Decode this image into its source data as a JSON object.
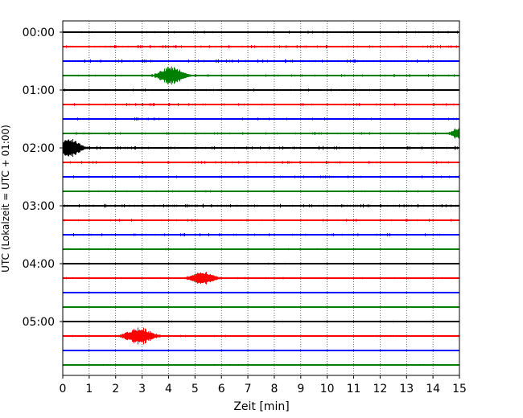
{
  "chart_data": {
    "type": "line",
    "title": "",
    "xlabel": "Zeit  [min]",
    "ylabel": "UTC (Lokalzeit = UTC + 01:00)",
    "xlim": [
      0,
      15
    ],
    "x_ticks": [
      "0",
      "1",
      "2",
      "3",
      "4",
      "5",
      "6",
      "7",
      "8",
      "9",
      "10",
      "11",
      "12",
      "13",
      "14",
      "15"
    ],
    "y_ticks": [
      "00:00",
      "01:00",
      "02:00",
      "03:00",
      "04:00",
      "05:00"
    ],
    "grid": "vertical dotted lines at every minute",
    "trace_interval_minutes": 15,
    "colors": {
      "black": "#000000",
      "red": "#ff0000",
      "blue": "#0000ff",
      "green": "#008000"
    },
    "traces": [
      {
        "start": "00:00",
        "color": "black",
        "noise": 0.6,
        "events": []
      },
      {
        "start": "00:15",
        "color": "red",
        "noise": 0.8,
        "events": []
      },
      {
        "start": "00:30",
        "color": "blue",
        "noise": 0.8,
        "events": []
      },
      {
        "start": "00:45",
        "color": "green",
        "noise": 0.7,
        "events": [
          {
            "time": 4.1,
            "amplitude": 11,
            "width": 0.45
          }
        ]
      },
      {
        "start": "01:00",
        "color": "black",
        "noise": 0.6,
        "events": []
      },
      {
        "start": "01:15",
        "color": "red",
        "noise": 0.7,
        "events": []
      },
      {
        "start": "01:30",
        "color": "blue",
        "noise": 0.7,
        "events": []
      },
      {
        "start": "01:45",
        "color": "green",
        "noise": 0.7,
        "events": [
          {
            "time": 14.95,
            "amplitude": 7,
            "width": 0.25
          }
        ]
      },
      {
        "start": "02:00",
        "color": "black",
        "noise": 0.8,
        "events": [
          {
            "time": 0.25,
            "amplitude": 12,
            "width": 0.4
          }
        ]
      },
      {
        "start": "02:15",
        "color": "red",
        "noise": 0.7,
        "events": []
      },
      {
        "start": "02:30",
        "color": "blue",
        "noise": 0.6,
        "events": []
      },
      {
        "start": "02:45",
        "color": "green",
        "noise": 0.5,
        "events": []
      },
      {
        "start": "03:00",
        "color": "black",
        "noise": 0.9,
        "events": []
      },
      {
        "start": "03:15",
        "color": "red",
        "noise": 0.7,
        "events": []
      },
      {
        "start": "03:30",
        "color": "blue",
        "noise": 0.7,
        "events": []
      },
      {
        "start": "03:45",
        "color": "green",
        "noise": 0.5,
        "events": []
      },
      {
        "start": "04:00",
        "color": "black",
        "noise": 0.4,
        "events": []
      },
      {
        "start": "04:15",
        "color": "red",
        "noise": 0.5,
        "events": [
          {
            "time": 5.3,
            "amplitude": 8,
            "width": 0.45
          }
        ]
      },
      {
        "start": "04:30",
        "color": "blue",
        "noise": 0.3,
        "events": []
      },
      {
        "start": "04:45",
        "color": "green",
        "noise": 0.3,
        "events": []
      },
      {
        "start": "05:00",
        "color": "black",
        "noise": 0.4,
        "events": []
      },
      {
        "start": "05:15",
        "color": "red",
        "noise": 0.5,
        "events": [
          {
            "time": 2.9,
            "amplitude": 11,
            "width": 0.5
          }
        ]
      },
      {
        "start": "05:30",
        "color": "blue",
        "noise": 0.4,
        "events": []
      },
      {
        "start": "05:45",
        "color": "green",
        "noise": 0.4,
        "events": []
      }
    ]
  }
}
